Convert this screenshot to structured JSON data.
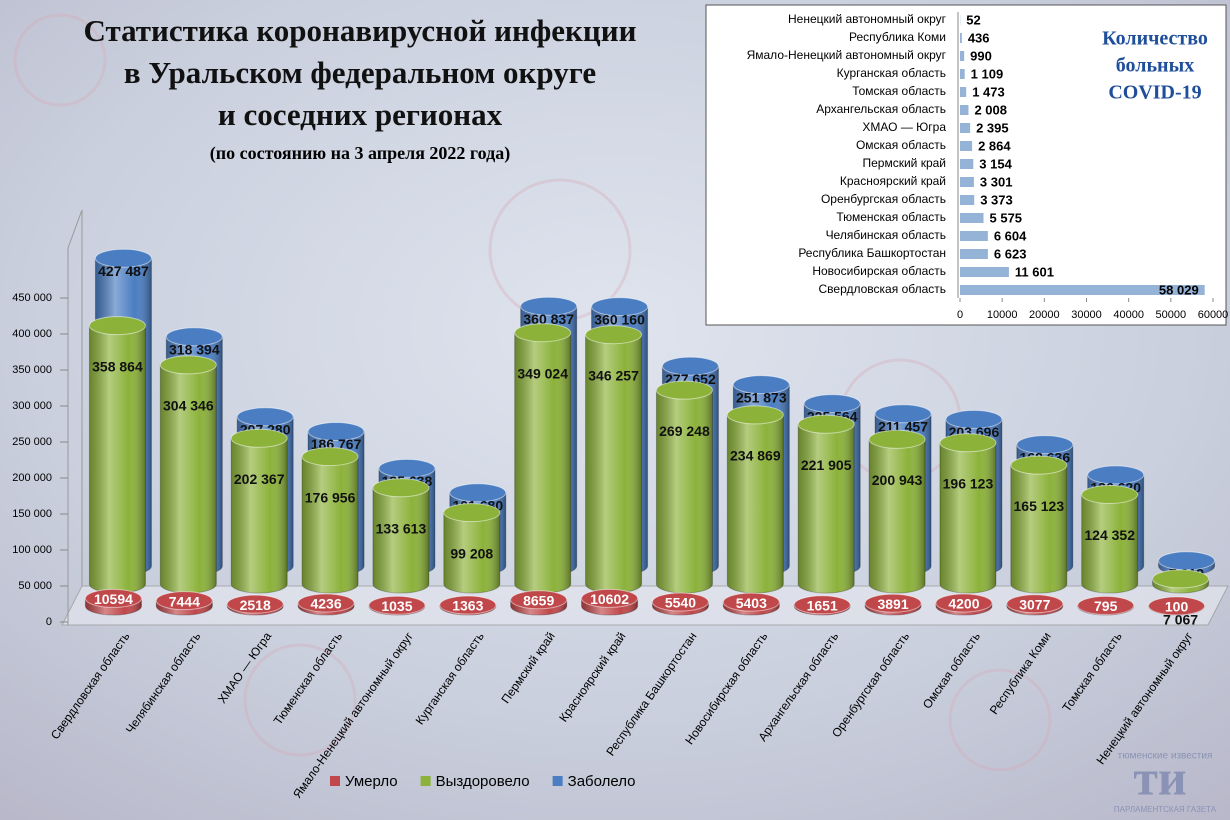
{
  "chart_data": [
    {
      "type": "bar3d",
      "title": [
        "Статистика коронавирусной инфекции",
        "в Уральском федеральном округе",
        "и соседних регионах"
      ],
      "subtitle": "(по состоянию на 3 апреля 2022 года)",
      "categories": [
        "Свердловская область",
        "Челябинская область",
        "ХМАО — Югра",
        "Тюменская область",
        "Ямало-Ненецкий автономный округ",
        "Курганская область",
        "Пермский край",
        "Красноярский край",
        "Республика Башкортостан",
        "Новосибирская область",
        "Архангельская область",
        "Оренбургская область",
        "Омская область",
        "Республика Коми",
        "Томская область",
        "Ненецкий автономный округ"
      ],
      "series": [
        {
          "name": "Умерло",
          "color": "#c0474a",
          "values": [
            10594,
            7444,
            2518,
            4236,
            1035,
            1363,
            8659,
            10602,
            5540,
            5403,
            1651,
            3891,
            4200,
            3077,
            795,
            100
          ]
        },
        {
          "name": "Выздоровело",
          "color": "#8cb23a",
          "values": [
            358864,
            304346,
            202367,
            176956,
            133613,
            99208,
            349024,
            346257,
            269248,
            234869,
            221905,
            200943,
            196123,
            165123,
            124352,
            7067
          ],
          "value_labels": [
            "358 864",
            "304 346",
            "202 367",
            "176 956",
            "133 613",
            "99 208",
            "349 024",
            "346 257",
            "269 248",
            "234 869",
            "221 905",
            "200 943",
            "196 123",
            "165 123",
            "124 352",
            "7 067"
          ]
        },
        {
          "name": "Заболело",
          "color": "#4a7dc2",
          "values": [
            427487,
            318394,
            207280,
            186767,
            135638,
            101680,
            360837,
            360160,
            277652,
            251873,
            225564,
            211457,
            203696,
            168636,
            126620,
            7219
          ],
          "value_labels": [
            "427 487",
            "318 394",
            "207 280",
            "186 767",
            "135 638",
            "101 680",
            "360 837",
            "360 160",
            "277 652",
            "251 873",
            "225 564",
            "211 457",
            "203 696",
            "168 636",
            "126 620",
            "7 219"
          ]
        }
      ],
      "ylim": [
        0,
        450000
      ],
      "yticks": [
        0,
        {
          "value": 50000,
          "label": "50 000"
        },
        {
          "value": 100000,
          "label": "100 000"
        },
        {
          "value": 150000,
          "label": "150 000"
        },
        {
          "value": 200000,
          "label": "200 000"
        },
        {
          "value": 250000,
          "label": "250 000"
        },
        {
          "value": 300000,
          "label": "300 000"
        },
        {
          "value": 350000,
          "label": "350 000"
        },
        {
          "value": 400000,
          "label": "400 000"
        },
        {
          "value": 450000,
          "label": "450 000"
        }
      ],
      "grid": false,
      "legend": "bottom"
    },
    {
      "type": "hbar",
      "title": [
        "Количество",
        "больных",
        "COVID-19"
      ],
      "categories": [
        "Ненецкий автономный округ",
        "Республика Коми",
        "Ямало-Ненецкий автономный округ",
        "Курганская область",
        "Томская область",
        "Архангельская область",
        "ХМАО — Югра",
        "Омская область",
        "Пермский край",
        "Красноярский край",
        "Оренбургская область",
        "Тюменская область",
        "Челябинская область",
        "Республика Башкортостан",
        "Новосибирская область",
        "Свердловская область"
      ],
      "values": [
        52,
        436,
        990,
        1109,
        1473,
        2008,
        2395,
        2864,
        3154,
        3301,
        3373,
        5575,
        6604,
        6623,
        11601,
        58029
      ],
      "value_labels": [
        "52",
        "436",
        "990",
        "1 109",
        "1 473",
        "2 008",
        "2 395",
        "2 864",
        "3 154",
        "3 301",
        "3 373",
        "5 575",
        "6 604",
        "6 623",
        "11 601",
        "58 029"
      ],
      "color": "#95b3d7",
      "xlim": [
        0,
        60000
      ],
      "xticks": [
        0,
        10000,
        20000,
        30000,
        40000,
        50000,
        60000
      ]
    }
  ],
  "logo": {
    "top": "тюменские известия",
    "mark": "ти",
    "bottom": "ПАРЛАМЕНТСКАЯ ГАЗЕТА"
  }
}
